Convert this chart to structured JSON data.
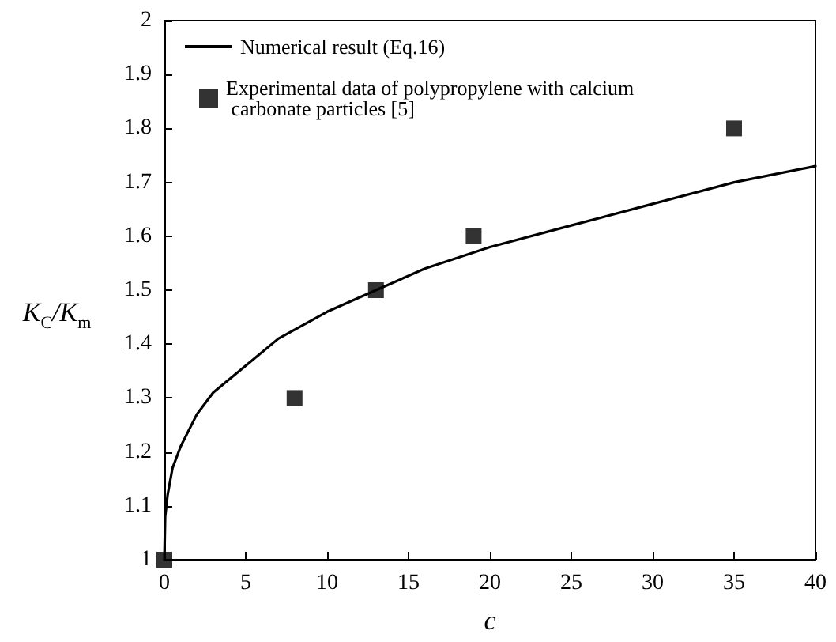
{
  "chart_data": {
    "type": "line",
    "xlabel": "c",
    "ylabel": "K$_{C}$/K$_{m}$",
    "xlim": [
      0,
      40
    ],
    "xticks": [
      0,
      5,
      10,
      15,
      20,
      25,
      30,
      35,
      40
    ],
    "ylim": [
      1,
      2
    ],
    "yticks": [
      1,
      1.1,
      1.2,
      1.3,
      1.4,
      1.5,
      1.6,
      1.7,
      1.8,
      1.9,
      2
    ],
    "grid": false,
    "legend": "top left",
    "series": [
      {
        "name": "Numerical result (Eq.16)",
        "color": "#000000",
        "marker": "none",
        "line_style": "solid",
        "x": [
          0,
          0.05,
          0.2,
          0.5,
          1,
          2,
          3,
          5,
          7,
          10,
          13,
          16,
          20,
          25,
          30,
          35,
          40
        ],
        "values": [
          1.0,
          1.08,
          1.12,
          1.17,
          1.21,
          1.27,
          1.31,
          1.36,
          1.41,
          1.46,
          1.5,
          1.54,
          1.58,
          1.62,
          1.66,
          1.7,
          1.73
        ]
      },
      {
        "name": "Experimental data of polypropylene with calcium carbonate particles [5]",
        "type": "scatter",
        "color": "#000000",
        "marker": "square",
        "x": [
          0,
          8,
          13,
          19,
          35
        ],
        "values": [
          1.0,
          1.3,
          1.5,
          1.6,
          1.8
        ]
      }
    ]
  }
}
